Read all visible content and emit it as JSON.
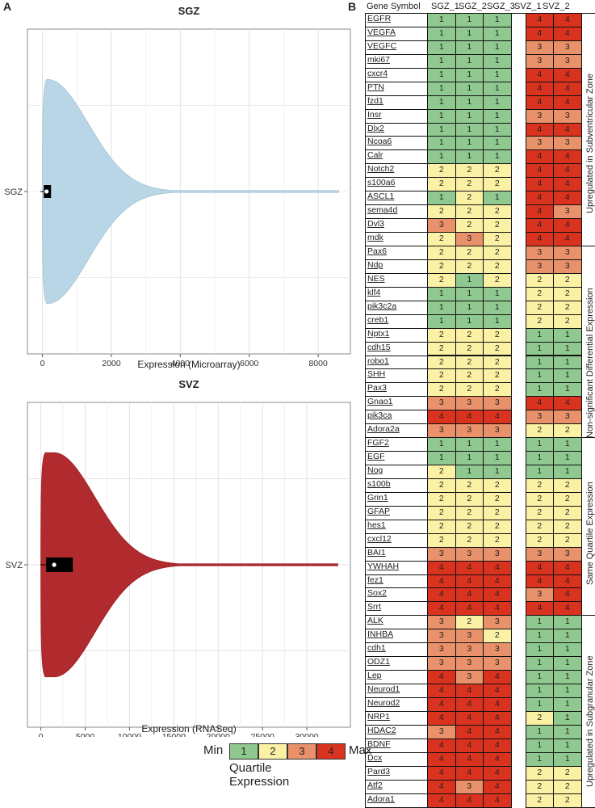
{
  "panel_a_label": "A",
  "panel_b_label": "B",
  "chart_data": [
    {
      "type": "violin",
      "title": "SGZ",
      "category": "SGZ",
      "xlabel": "Expression (Microarray)",
      "xlim": [
        -200,
        8700
      ],
      "xticks": [
        0,
        2000,
        4000,
        6000,
        8000
      ],
      "xtick_labels": [
        "0",
        "2000",
        "4000",
        "6000",
        "8000"
      ],
      "color": "#b9d6e6",
      "density_peak_at": 150,
      "tail_end": 8600,
      "median": 120,
      "iqr": [
        40,
        250
      ]
    },
    {
      "type": "violin",
      "title": "SVZ",
      "category": "SVZ",
      "xlabel": "Expression (RNASeq)",
      "xlim": [
        -600,
        34000
      ],
      "xticks": [
        0,
        5000,
        10000,
        15000,
        20000,
        25000,
        30000
      ],
      "xtick_labels": [
        "0",
        "5000",
        "10000",
        "15000",
        "20000",
        "25000",
        "30000"
      ],
      "color": "#b02a2e",
      "density_peak_at": 1500,
      "tail_end": 33500,
      "median": 1500,
      "iqr": [
        600,
        3600
      ]
    },
    {
      "type": "table",
      "columns": [
        "Gene Symbol",
        "SGZ_1",
        "SGZ_2",
        "SGZ_3",
        "SVZ_1",
        "SVZ_2"
      ],
      "groups": [
        {
          "label": "Upregulated in Subventricular Zone",
          "rows": [
            {
              "gene": "EGFR",
              "values": [
                1,
                1,
                1,
                4,
                4
              ]
            },
            {
              "gene": "VEGFA",
              "values": [
                1,
                1,
                1,
                4,
                4
              ]
            },
            {
              "gene": "VEGFC",
              "values": [
                1,
                1,
                1,
                3,
                3
              ]
            },
            {
              "gene": "mki67",
              "values": [
                1,
                1,
                1,
                3,
                3
              ]
            },
            {
              "gene": "cxcr4",
              "values": [
                1,
                1,
                1,
                4,
                4
              ]
            },
            {
              "gene": "PTN",
              "values": [
                1,
                1,
                1,
                4,
                4
              ]
            },
            {
              "gene": "fzd1",
              "values": [
                1,
                1,
                1,
                4,
                4
              ]
            },
            {
              "gene": "Insr",
              "values": [
                1,
                1,
                1,
                3,
                3
              ]
            },
            {
              "gene": "Dlx2",
              "values": [
                1,
                1,
                1,
                4,
                4
              ]
            },
            {
              "gene": "Ncoa6",
              "values": [
                1,
                1,
                1,
                3,
                3
              ]
            },
            {
              "gene": "Calr",
              "values": [
                1,
                1,
                1,
                4,
                4
              ]
            },
            {
              "gene": "Notch2",
              "values": [
                2,
                2,
                2,
                4,
                4
              ]
            },
            {
              "gene": "s100a6",
              "values": [
                2,
                2,
                2,
                4,
                4
              ]
            },
            {
              "gene": "ASCL1",
              "values": [
                1,
                2,
                1,
                4,
                4
              ]
            },
            {
              "gene": "sema4d",
              "values": [
                2,
                2,
                2,
                4,
                3
              ]
            },
            {
              "gene": "Dvl3",
              "values": [
                3,
                2,
                2,
                4,
                4
              ]
            },
            {
              "gene": "mdk",
              "values": [
                2,
                3,
                2,
                4,
                4
              ]
            }
          ]
        },
        {
          "label": "Non-significant Differential Expression",
          "rows": [
            {
              "gene": "Pax6",
              "values": [
                2,
                2,
                2,
                3,
                3
              ]
            },
            {
              "gene": "Ndp",
              "values": [
                2,
                2,
                2,
                3,
                3
              ]
            },
            {
              "gene": "NES",
              "values": [
                2,
                1,
                2,
                2,
                2
              ]
            },
            {
              "gene": "klf4",
              "values": [
                1,
                1,
                1,
                2,
                2
              ]
            },
            {
              "gene": "pik3c2a",
              "values": [
                1,
                1,
                1,
                2,
                2
              ]
            },
            {
              "gene": "creb1",
              "values": [
                1,
                1,
                1,
                2,
                2
              ]
            },
            {
              "gene": "Nptx1",
              "values": [
                2,
                2,
                2,
                1,
                1
              ]
            },
            {
              "gene": "cdh15",
              "values": [
                2,
                2,
                2,
                1,
                1
              ]
            },
            {
              "gene": "robo1",
              "values": [
                2,
                2,
                2,
                1,
                1
              ]
            },
            {
              "gene": "SHH",
              "values": [
                2,
                2,
                2,
                1,
                1
              ]
            },
            {
              "gene": "Pax3",
              "values": [
                2,
                2,
                2,
                1,
                1
              ]
            },
            {
              "gene": "Gnao1",
              "values": [
                3,
                3,
                3,
                4,
                4
              ]
            },
            {
              "gene": "pik3ca",
              "values": [
                4,
                4,
                4,
                3,
                3
              ]
            },
            {
              "gene": "Adora2a",
              "values": [
                3,
                3,
                3,
                2,
                2
              ]
            }
          ]
        },
        {
          "label": "Same Quartile Expression",
          "rows": [
            {
              "gene": "FGF2",
              "values": [
                1,
                1,
                1,
                1,
                1
              ]
            },
            {
              "gene": "EGF",
              "values": [
                1,
                1,
                1,
                1,
                1
              ]
            },
            {
              "gene": "Nog",
              "values": [
                2,
                1,
                1,
                1,
                1
              ]
            },
            {
              "gene": "s100b",
              "values": [
                2,
                2,
                2,
                2,
                2
              ]
            },
            {
              "gene": "Grin1",
              "values": [
                2,
                2,
                2,
                2,
                2
              ]
            },
            {
              "gene": "GFAP",
              "values": [
                2,
                2,
                2,
                2,
                2
              ]
            },
            {
              "gene": "hes1",
              "values": [
                2,
                2,
                2,
                2,
                2
              ]
            },
            {
              "gene": "cxcl12",
              "values": [
                2,
                2,
                2,
                2,
                2
              ]
            },
            {
              "gene": "BAI1",
              "values": [
                3,
                3,
                3,
                3,
                3
              ]
            },
            {
              "gene": "YWHAH",
              "values": [
                4,
                4,
                4,
                4,
                4
              ]
            },
            {
              "gene": "fez1",
              "values": [
                4,
                4,
                4,
                4,
                4
              ]
            },
            {
              "gene": "Sox2",
              "values": [
                4,
                4,
                4,
                3,
                4
              ]
            },
            {
              "gene": "Srrt",
              "values": [
                4,
                4,
                4,
                4,
                4
              ]
            }
          ]
        },
        {
          "label": "Upregulated in Subgranular Zone",
          "rows": [
            {
              "gene": "ALK",
              "values": [
                3,
                2,
                3,
                1,
                1
              ]
            },
            {
              "gene": "INHBA",
              "values": [
                3,
                3,
                2,
                1,
                1
              ]
            },
            {
              "gene": "cdh1",
              "values": [
                3,
                3,
                3,
                1,
                1
              ]
            },
            {
              "gene": "ODZ1",
              "values": [
                3,
                3,
                3,
                1,
                1
              ]
            },
            {
              "gene": "Lep",
              "values": [
                4,
                3,
                4,
                1,
                1
              ]
            },
            {
              "gene": "Neurod1",
              "values": [
                4,
                4,
                4,
                1,
                1
              ]
            },
            {
              "gene": "Neurod2",
              "values": [
                4,
                4,
                4,
                1,
                1
              ]
            },
            {
              "gene": "NRP1",
              "values": [
                4,
                4,
                4,
                2,
                1
              ]
            },
            {
              "gene": "HDAC2",
              "values": [
                3,
                4,
                4,
                1,
                1
              ]
            },
            {
              "gene": "BDNF",
              "values": [
                4,
                4,
                4,
                1,
                1
              ]
            },
            {
              "gene": "Dcx",
              "values": [
                4,
                4,
                4,
                1,
                1
              ]
            },
            {
              "gene": "Pard3",
              "values": [
                4,
                4,
                4,
                2,
                2
              ]
            },
            {
              "gene": "Atf2",
              "values": [
                4,
                3,
                4,
                2,
                2
              ]
            },
            {
              "gene": "Adora1",
              "values": [
                4,
                4,
                4,
                2,
                2
              ]
            }
          ]
        }
      ]
    }
  ],
  "legend": {
    "min_label": "Min",
    "max_label": "Max",
    "title": "Quartile Expression",
    "levels": [
      "1",
      "2",
      "3",
      "4"
    ]
  },
  "colors": {
    "q1": "#8fc98f",
    "q2": "#fbf1a4",
    "q3": "#e8916a",
    "q4": "#d9321f"
  }
}
